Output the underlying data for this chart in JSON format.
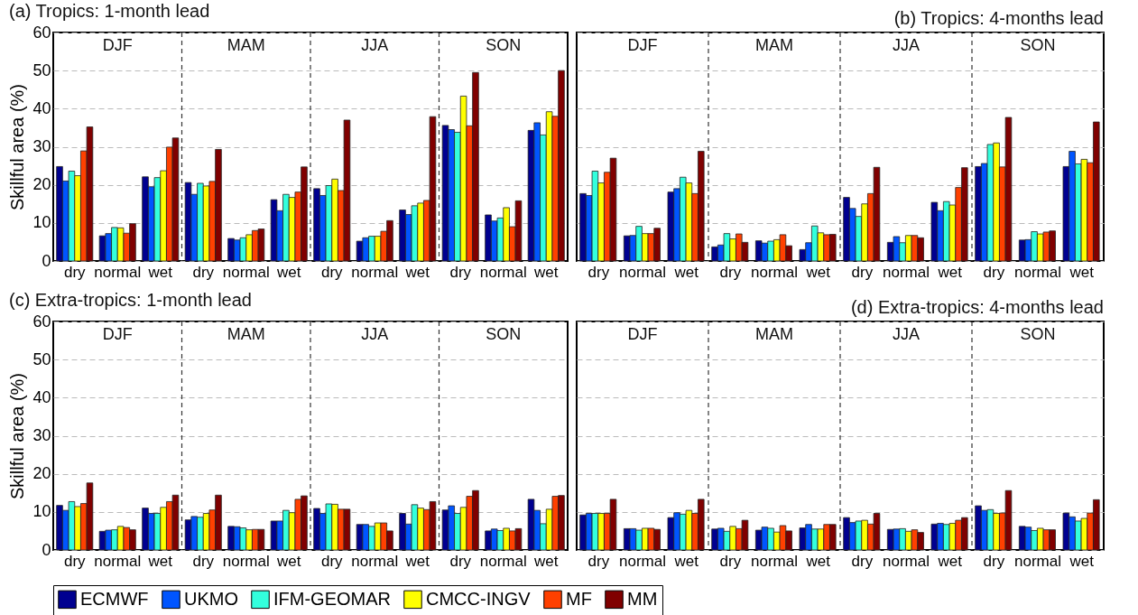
{
  "chart_data": [
    {
      "type": "bar",
      "title": "(a) Tropics: 1-month lead",
      "ylabel": "Skillful area (%)",
      "categories": [
        "dry",
        "normal",
        "wet",
        "dry",
        "normal",
        "wet",
        "dry",
        "normal",
        "wet",
        "dry",
        "normal",
        "wet"
      ],
      "annotations": [
        "DJF",
        "MAM",
        "JJA",
        "SON"
      ],
      "ylim": [
        0,
        60
      ],
      "yticks": [
        0,
        10,
        20,
        30,
        40,
        50,
        60
      ],
      "grid": "y",
      "legend": "bottom",
      "series": [
        {
          "name": "ECMWF",
          "color": "#000090",
          "values": [
            24.8,
            6.6,
            22.1,
            20.6,
            5.9,
            16.1,
            19.0,
            5.2,
            13.4,
            35.6,
            12.1,
            34.3
          ]
        },
        {
          "name": "UKMO",
          "color": "#0055ff",
          "values": [
            21.0,
            7.2,
            19.5,
            17.5,
            5.5,
            13.2,
            17.2,
            6.1,
            12.2,
            34.5,
            10.5,
            36.3
          ]
        },
        {
          "name": "IFM-GEOMAR",
          "color": "#33ffdd",
          "values": [
            23.6,
            8.8,
            21.9,
            20.4,
            6.1,
            17.5,
            19.8,
            6.5,
            14.5,
            33.8,
            11.3,
            33.1
          ]
        },
        {
          "name": "CMCC-INGV",
          "color": "#ffff00",
          "values": [
            22.4,
            8.7,
            23.7,
            19.7,
            6.9,
            16.7,
            21.5,
            6.5,
            15.2,
            43.3,
            14.0,
            39.2
          ]
        },
        {
          "name": "MF",
          "color": "#ff4000",
          "values": [
            28.9,
            7.3,
            29.9,
            20.9,
            8.0,
            18.1,
            18.5,
            7.8,
            15.9,
            35.5,
            9.0,
            38.0
          ]
        },
        {
          "name": "MM",
          "color": "#800000",
          "values": [
            35.2,
            9.8,
            32.3,
            29.3,
            8.4,
            24.7,
            37.0,
            10.6,
            37.9,
            49.5,
            15.8,
            50.0
          ]
        }
      ]
    },
    {
      "type": "bar",
      "title": "(b) Tropics: 4-months lead",
      "categories": [
        "dry",
        "normal",
        "wet",
        "dry",
        "normal",
        "wet",
        "dry",
        "normal",
        "wet",
        "dry",
        "normal",
        "wet"
      ],
      "annotations": [
        "DJF",
        "MAM",
        "JJA",
        "SON"
      ],
      "ylim": [
        0,
        60
      ],
      "yticks": [
        0,
        10,
        20,
        30,
        40,
        50,
        60
      ],
      "tick_labels": "x",
      "grid": "y",
      "legend": "bottom",
      "series": [
        {
          "name": "ECMWF",
          "color": "#000090",
          "values": [
            17.7,
            6.6,
            18.1,
            3.7,
            5.3,
            3.0,
            16.7,
            4.9,
            15.4,
            24.8,
            5.5,
            24.8
          ]
        },
        {
          "name": "UKMO",
          "color": "#0055ff",
          "values": [
            17.2,
            6.7,
            19.0,
            4.2,
            4.7,
            4.8,
            13.8,
            6.4,
            13.2,
            25.6,
            5.6,
            28.8
          ]
        },
        {
          "name": "IFM-GEOMAR",
          "color": "#33ffdd",
          "values": [
            23.6,
            9.1,
            22.0,
            7.2,
            5.2,
            9.2,
            11.7,
            4.8,
            15.6,
            30.6,
            7.7,
            25.5
          ]
        },
        {
          "name": "CMCC-INGV",
          "color": "#ffff00",
          "values": [
            20.5,
            7.2,
            20.5,
            5.8,
            5.6,
            7.4,
            15.0,
            6.7,
            14.7,
            31.0,
            7.1,
            26.7
          ]
        },
        {
          "name": "MF",
          "color": "#ff4000",
          "values": [
            23.3,
            7.2,
            17.7,
            7.1,
            6.9,
            6.9,
            17.7,
            6.7,
            19.3,
            24.7,
            7.6,
            25.8
          ]
        },
        {
          "name": "MM",
          "color": "#800000",
          "values": [
            27.0,
            8.6,
            28.8,
            4.9,
            4.0,
            7.0,
            24.6,
            6.1,
            24.5,
            37.7,
            7.9,
            36.5
          ]
        }
      ]
    },
    {
      "type": "bar",
      "title": "(c) Extra-tropics: 1-month lead",
      "ylabel": "Skillful area (%)",
      "categories": [
        "dry",
        "normal",
        "wet",
        "dry",
        "normal",
        "wet",
        "dry",
        "normal",
        "wet",
        "dry",
        "normal",
        "wet"
      ],
      "annotations": [
        "DJF",
        "MAM",
        "JJA",
        "SON"
      ],
      "ylim": [
        0,
        60
      ],
      "yticks": [
        0,
        10,
        20,
        30,
        40,
        50,
        60
      ],
      "grid": "y",
      "legend": "bottom",
      "series": [
        {
          "name": "ECMWF",
          "color": "#000090",
          "values": [
            11.7,
            4.9,
            11.0,
            7.9,
            6.2,
            7.6,
            10.9,
            6.7,
            9.6,
            10.5,
            5.0,
            13.3
          ]
        },
        {
          "name": "UKMO",
          "color": "#0055ff",
          "values": [
            10.4,
            5.2,
            9.6,
            8.8,
            6.1,
            7.6,
            9.6,
            6.7,
            6.8,
            11.6,
            5.5,
            10.4
          ]
        },
        {
          "name": "IFM-GEOMAR",
          "color": "#33ffdd",
          "values": [
            12.7,
            5.3,
            9.6,
            8.6,
            5.8,
            10.4,
            12.1,
            6.2,
            11.9,
            9.6,
            5.1,
            6.9
          ]
        },
        {
          "name": "CMCC-INGV",
          "color": "#ffff00",
          "values": [
            11.4,
            6.2,
            11.2,
            9.6,
            5.3,
            9.8,
            12.0,
            7.1,
            11.0,
            11.2,
            5.7,
            10.7
          ]
        },
        {
          "name": "MF",
          "color": "#ff4000",
          "values": [
            12.2,
            5.9,
            12.7,
            10.5,
            5.4,
            13.3,
            10.7,
            7.1,
            10.6,
            14.1,
            5.0,
            14.1
          ]
        },
        {
          "name": "MM",
          "color": "#800000",
          "values": [
            17.6,
            5.3,
            14.4,
            14.4,
            5.4,
            14.2,
            10.7,
            5.0,
            12.7,
            15.6,
            5.6,
            14.3
          ]
        }
      ]
    },
    {
      "type": "bar",
      "title": "(d) Extra-tropics: 4-months lead",
      "categories": [
        "dry",
        "normal",
        "wet",
        "dry",
        "normal",
        "wet",
        "dry",
        "normal",
        "wet",
        "dry",
        "normal",
        "wet"
      ],
      "annotations": [
        "DJF",
        "MAM",
        "JJA",
        "SON"
      ],
      "ylim": [
        0,
        60
      ],
      "yticks": [
        0,
        10,
        20,
        30,
        40,
        50,
        60
      ],
      "tick_labels": "x",
      "grid": "y",
      "legend": "bottom",
      "series": [
        {
          "name": "ECMWF",
          "color": "#000090",
          "values": [
            9.2,
            5.6,
            8.5,
            5.5,
            5.2,
            5.8,
            8.5,
            5.4,
            6.8,
            11.6,
            6.2,
            9.7
          ]
        },
        {
          "name": "UKMO",
          "color": "#0055ff",
          "values": [
            9.6,
            5.6,
            9.8,
            5.7,
            6.0,
            6.7,
            7.2,
            5.5,
            7.0,
            10.4,
            6.0,
            8.7
          ]
        },
        {
          "name": "IFM-GEOMAR",
          "color": "#33ffdd",
          "values": [
            9.6,
            5.2,
            9.4,
            4.9,
            5.7,
            5.5,
            7.6,
            5.6,
            6.7,
            10.6,
            5.1,
            7.6
          ]
        },
        {
          "name": "CMCC-INGV",
          "color": "#ffff00",
          "values": [
            9.6,
            5.7,
            10.4,
            6.2,
            4.7,
            5.5,
            7.8,
            4.9,
            7.0,
            9.6,
            5.7,
            8.3
          ]
        },
        {
          "name": "MF",
          "color": "#ff4000",
          "values": [
            9.6,
            5.7,
            9.6,
            5.6,
            6.4,
            6.7,
            6.8,
            5.3,
            7.8,
            9.7,
            5.3,
            9.7
          ]
        },
        {
          "name": "MM",
          "color": "#800000",
          "values": [
            13.3,
            5.4,
            13.3,
            7.8,
            5.0,
            6.7,
            9.6,
            4.6,
            8.5,
            15.6,
            5.3,
            13.2
          ]
        }
      ]
    }
  ]
}
